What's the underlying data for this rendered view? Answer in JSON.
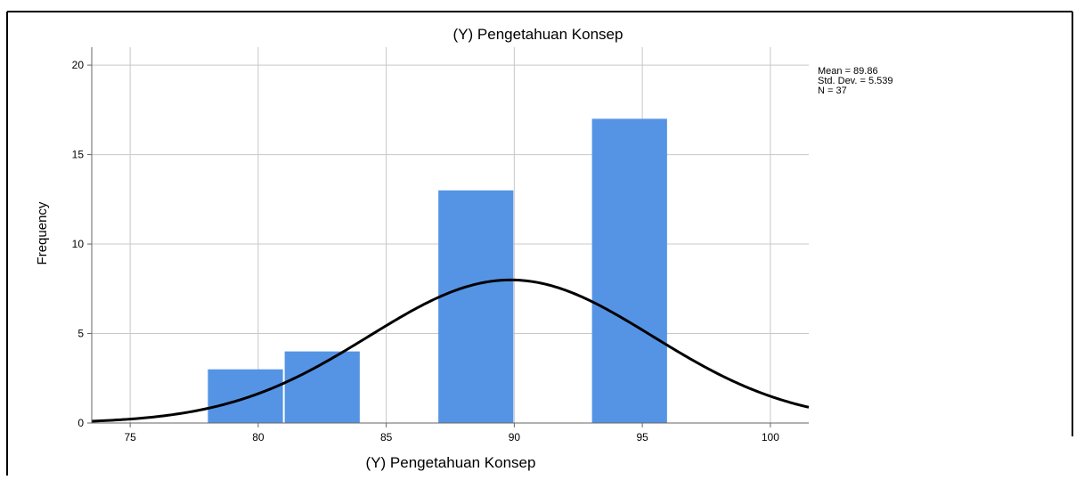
{
  "chart_data": {
    "type": "bar",
    "title": "(Y) Pengetahuan Konsep",
    "xlabel": "(Y) Pengetahuan Konsep",
    "ylabel": "Frequency",
    "xlim": [
      73.5,
      101.5
    ],
    "ylim": [
      0,
      21
    ],
    "xticks": [
      75,
      80,
      85,
      90,
      95,
      100
    ],
    "yticks": [
      0,
      5,
      10,
      15,
      20
    ],
    "bars": [
      {
        "x0": 78,
        "x1": 81,
        "value": 3
      },
      {
        "x0": 81,
        "x1": 84,
        "value": 4
      },
      {
        "x0": 87,
        "x1": 90,
        "value": 13
      },
      {
        "x0": 93,
        "x1": 96,
        "value": 17
      }
    ],
    "normal_curve": {
      "mean": 89.86,
      "sd": 5.539,
      "n": 37,
      "bin_width": 3
    },
    "stats_text": [
      "Mean = 89.86",
      "Std. Dev. = 5.539",
      "N = 37"
    ],
    "grid": true,
    "colors": {
      "bar": "#5594e5",
      "curve": "#000000",
      "grid": "#c8c8c8",
      "axis": "#666666"
    }
  }
}
